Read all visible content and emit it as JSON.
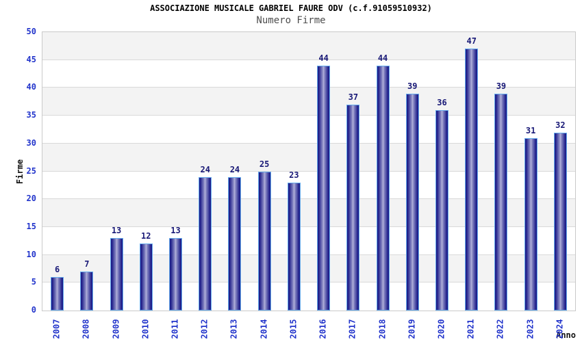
{
  "chart_data": {
    "type": "bar",
    "title": "ASSOCIAZIONE MUSICALE GABRIEL FAURE ODV (c.f.91059510932)",
    "subtitle": "Numero Firme",
    "xlabel": "Anno",
    "ylabel": "Firme",
    "categories": [
      "2007",
      "2008",
      "2009",
      "2010",
      "2011",
      "2012",
      "2013",
      "2014",
      "2015",
      "2016",
      "2017",
      "2018",
      "2019",
      "2020",
      "2021",
      "2022",
      "2023",
      "2024"
    ],
    "values": [
      6,
      7,
      13,
      12,
      13,
      24,
      24,
      25,
      23,
      44,
      37,
      44,
      39,
      36,
      47,
      39,
      31,
      32
    ],
    "ylim": [
      0,
      50
    ],
    "ytick_step": 5,
    "grid": true,
    "legend": "none",
    "band_fill": "alternating horizontal stripes",
    "colors": {
      "band_gray": "#f3f3f3",
      "band_white": "#ffffff",
      "gridline": "#d9d9d9",
      "plot_border": "#c9c9c9",
      "bar_border": "#64aaec",
      "bar_edge": "#1f1f8a",
      "bar_mid": "#8a8ac4",
      "bar_center": "#b4b4dc",
      "tick_label": "#2234cb",
      "value_label": "#191977",
      "title": "#000000",
      "subtitle": "#4d4d4d",
      "axis_title": "#111111"
    }
  }
}
